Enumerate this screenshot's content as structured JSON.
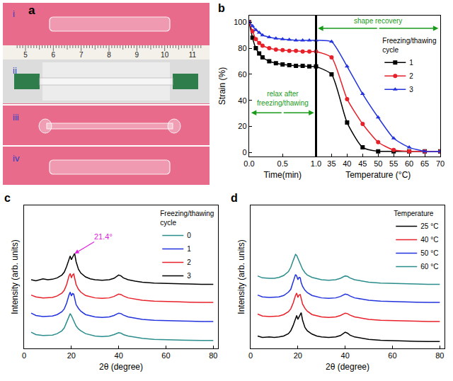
{
  "photo": {
    "label": "a",
    "rows": [
      "i",
      "ii",
      "iii",
      "iv"
    ],
    "ruler_ticks": [
      5,
      6,
      7,
      8,
      9,
      10,
      11
    ]
  },
  "chart_data": [
    {
      "type": "line",
      "label": "b",
      "y_label": "Strain (%)",
      "ylim": [
        -3,
        105
      ],
      "yticks": [
        0,
        20,
        40,
        60,
        80,
        100
      ],
      "grid": false,
      "legend": "right",
      "legend_title": "Freezing/thawing cycle",
      "parts": [
        {
          "x_label": "Time(min)",
          "xlim": [
            0,
            1
          ],
          "xticks": [
            {
              "value": 0,
              "label": "0.0"
            },
            {
              "value": 0.5,
              "label": "0.5"
            },
            {
              "value": 1,
              "label": "1.0"
            }
          ],
          "annotation": "relax after freezing/thawing"
        },
        {
          "x_label": "Temperature (°C)",
          "xlim": [
            30,
            70
          ],
          "xticks": [
            35,
            40,
            45,
            50,
            55,
            60,
            65,
            70
          ],
          "annotation": "shape recovery"
        }
      ],
      "series": [
        {
          "name": "1",
          "color": "#000000",
          "marker": "square",
          "segments": [
            {
              "x": [
                0,
                0.05,
                0.1,
                0.15,
                0.2,
                0.3,
                0.4,
                0.5,
                0.6,
                0.7,
                0.8,
                0.9,
                1.0
              ],
              "values": [
                100,
                88,
                80,
                76,
                73,
                70,
                68.5,
                67.5,
                67,
                66.5,
                66.5,
                66,
                66
              ]
            },
            {
              "x": [
                30,
                35,
                40,
                45,
                50,
                55,
                60,
                65,
                70
              ],
              "values": [
                66,
                60,
                23,
                4,
                1,
                1,
                1,
                1,
                1
              ]
            }
          ]
        },
        {
          "name": "2",
          "color": "#e8202a",
          "marker": "circle",
          "segments": [
            {
              "x": [
                0,
                0.05,
                0.1,
                0.15,
                0.2,
                0.3,
                0.4,
                0.5,
                0.6,
                0.7,
                0.8,
                0.9,
                1.0
              ],
              "values": [
                100,
                93,
                87,
                84,
                82,
                80,
                79,
                78.5,
                78,
                78,
                77.5,
                77.5,
                77.5
              ]
            },
            {
              "x": [
                30,
                35,
                40,
                45,
                50,
                55,
                60,
                65,
                70
              ],
              "values": [
                77.5,
                73,
                41,
                22,
                8,
                2,
                1,
                1,
                1
              ]
            }
          ]
        },
        {
          "name": "3",
          "color": "#2233dd",
          "marker": "triangle-up",
          "segments": [
            {
              "x": [
                0,
                0.05,
                0.1,
                0.15,
                0.2,
                0.3,
                0.4,
                0.5,
                0.6,
                0.7,
                0.8,
                0.9,
                1.0
              ],
              "values": [
                100,
                97,
                94,
                92,
                90,
                88.5,
                87.5,
                87,
                86.5,
                86,
                86,
                86,
                86
              ]
            },
            {
              "x": [
                30,
                35,
                40,
                45,
                50,
                55,
                60,
                65,
                70
              ],
              "values": [
                86,
                85,
                66,
                45,
                27,
                11,
                4,
                1,
                1
              ]
            }
          ]
        }
      ]
    },
    {
      "type": "line",
      "label": "c",
      "x_label": "2θ (degree)",
      "y_label": "Intensity (arb. units)",
      "xlim": [
        0,
        82
      ],
      "xticks": [
        0,
        20,
        40,
        60,
        80
      ],
      "ylim": [
        0,
        15
      ],
      "grid": false,
      "tick_labels": "x",
      "legend": "upper right",
      "legend_title": "Freezing/thawing cycle",
      "annotations": [
        {
          "text": "21.4°",
          "x": 21.4,
          "y": 9.95
        }
      ],
      "x": [
        3,
        5,
        8,
        10,
        12,
        14,
        16,
        17,
        18,
        19,
        19.5,
        20,
        20.5,
        21,
        21.4,
        22,
        23,
        24,
        26,
        28,
        30,
        33,
        36,
        38,
        40,
        41,
        42,
        44,
        47,
        50,
        55,
        60,
        65,
        70,
        75,
        80
      ],
      "series": [
        {
          "name": "0",
          "color": "#2b8c8c",
          "values": [
            1.7,
            1.45,
            1.35,
            1.35,
            1.4,
            1.55,
            1.85,
            2.15,
            2.75,
            3.45,
            3.65,
            3.45,
            3.15,
            2.85,
            2.65,
            2.35,
            2.05,
            1.85,
            1.55,
            1.4,
            1.3,
            1.25,
            1.3,
            1.45,
            1.65,
            1.6,
            1.45,
            1.3,
            1.15,
            1.05,
            0.95,
            0.9,
            0.85,
            0.85,
            0.83,
            0.83
          ]
        },
        {
          "name": "1",
          "color": "#2233dd",
          "values": [
            3.7,
            3.45,
            3.35,
            3.35,
            3.4,
            3.55,
            3.85,
            4.15,
            4.75,
            5.6,
            5.9,
            5.5,
            5.75,
            5.7,
            5.15,
            4.6,
            4.2,
            3.9,
            3.55,
            3.4,
            3.3,
            3.25,
            3.3,
            3.45,
            3.7,
            3.65,
            3.5,
            3.3,
            3.15,
            3.05,
            2.95,
            2.9,
            2.85,
            2.85,
            2.83,
            2.83
          ]
        },
        {
          "name": "2",
          "color": "#e8202a",
          "values": [
            5.6,
            5.4,
            5.3,
            5.3,
            5.35,
            5.5,
            5.8,
            6.1,
            6.7,
            7.6,
            7.85,
            7.4,
            7.7,
            7.8,
            7.3,
            6.7,
            6.2,
            5.9,
            5.55,
            5.4,
            5.3,
            5.25,
            5.3,
            5.45,
            5.7,
            5.65,
            5.5,
            5.3,
            5.15,
            5.05,
            4.95,
            4.9,
            4.85,
            4.85,
            4.83,
            4.83
          ]
        },
        {
          "name": "3",
          "color": "#000000",
          "values": [
            7.2,
            7.1,
            7.3,
            7.2,
            7.25,
            7.4,
            7.7,
            8.0,
            8.6,
            9.4,
            9.7,
            9.3,
            9.6,
            9.8,
            9.95,
            9.1,
            8.3,
            7.9,
            7.5,
            7.3,
            7.2,
            7.15,
            7.2,
            7.35,
            7.7,
            7.6,
            7.4,
            7.2,
            7.05,
            6.95,
            6.85,
            6.8,
            6.75,
            6.75,
            6.72,
            6.72
          ]
        }
      ]
    },
    {
      "type": "line",
      "label": "d",
      "x_label": "2θ (degree)",
      "y_label": "Intensity (arb. units)",
      "xlim": [
        0,
        82
      ],
      "xticks": [
        0,
        20,
        40,
        60,
        80
      ],
      "ylim": [
        0,
        15
      ],
      "grid": false,
      "tick_labels": "x",
      "legend": "upper right",
      "legend_title": "Temperature",
      "x": [
        3,
        5,
        8,
        10,
        12,
        14,
        16,
        17,
        18,
        19,
        19.5,
        20,
        20.5,
        21,
        21.4,
        22,
        23,
        24,
        26,
        28,
        30,
        33,
        36,
        38,
        40,
        41,
        42,
        44,
        47,
        50,
        55,
        60,
        65,
        70,
        75,
        80
      ],
      "series": [
        {
          "name": "25 °C",
          "color": "#000000",
          "values": [
            1.3,
            1.15,
            1.2,
            1.15,
            1.2,
            1.3,
            1.55,
            1.85,
            2.4,
            3.2,
            3.45,
            3.05,
            3.3,
            3.55,
            3.75,
            2.95,
            2.2,
            1.85,
            1.5,
            1.3,
            1.2,
            1.15,
            1.2,
            1.35,
            1.7,
            1.6,
            1.4,
            1.2,
            1.05,
            0.95,
            0.85,
            0.8,
            0.75,
            0.75,
            0.72,
            0.72
          ]
        },
        {
          "name": "40 °C",
          "color": "#e8202a",
          "values": [
            3.6,
            3.4,
            3.35,
            3.35,
            3.4,
            3.55,
            3.85,
            4.15,
            4.75,
            5.55,
            5.8,
            5.35,
            5.6,
            5.65,
            5.2,
            4.65,
            4.2,
            3.9,
            3.55,
            3.4,
            3.3,
            3.25,
            3.3,
            3.45,
            3.7,
            3.65,
            3.5,
            3.3,
            3.15,
            3.05,
            2.95,
            2.9,
            2.85,
            2.85,
            2.83,
            2.83
          ]
        },
        {
          "name": "50 °C",
          "color": "#2233dd",
          "values": [
            5.6,
            5.4,
            5.35,
            5.35,
            5.4,
            5.55,
            5.9,
            6.2,
            6.9,
            7.75,
            7.6,
            7.2,
            7.45,
            7.4,
            6.9,
            6.5,
            6.1,
            5.85,
            5.55,
            5.4,
            5.3,
            5.25,
            5.3,
            5.45,
            5.7,
            5.65,
            5.5,
            5.3,
            5.15,
            5.05,
            4.95,
            4.9,
            4.85,
            4.85,
            4.83,
            4.83
          ]
        },
        {
          "name": "60 °C",
          "color": "#2b8c8c",
          "values": [
            7.6,
            7.4,
            7.35,
            7.35,
            7.45,
            7.65,
            8.05,
            8.5,
            9.2,
            9.85,
            9.75,
            9.45,
            9.1,
            8.8,
            8.6,
            8.3,
            7.95,
            7.7,
            7.45,
            7.3,
            7.2,
            7.15,
            7.2,
            7.35,
            7.6,
            7.55,
            7.4,
            7.2,
            7.05,
            6.95,
            6.85,
            6.8,
            6.75,
            6.75,
            6.72,
            6.72
          ]
        }
      ]
    }
  ]
}
